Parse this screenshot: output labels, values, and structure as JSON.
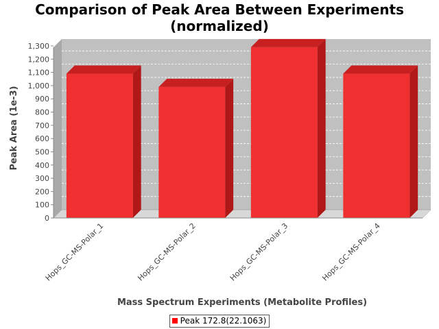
{
  "chart_data": {
    "type": "bar",
    "title_lines": [
      "Comparison of Peak Area Between Experiments",
      "(normalized)"
    ],
    "xlabel": "Mass Spectrum Experiments (Metabolite Profiles)",
    "ylabel": "Peak Area (1e-3)",
    "categories": [
      "Hops_GC-MS-Polar_1",
      "Hops_GC-MS-Polar_2",
      "Hops_GC-MS-Polar_3",
      "Hops_GC-MS-Polar_4"
    ],
    "series": [
      {
        "name": "Peak 172.8(22.1063)",
        "values": [
          1090,
          990,
          1290,
          1090
        ]
      }
    ],
    "ylim": [
      0,
      1300
    ],
    "yticks": [
      0,
      100,
      200,
      300,
      400,
      500,
      600,
      700,
      800,
      900,
      1000,
      1100,
      1200,
      1300
    ],
    "ytick_labels": [
      "0",
      "100",
      "200",
      "300",
      "400",
      "500",
      "600",
      "700",
      "800",
      "900",
      "1,000",
      "1,100",
      "1,200",
      "1,300"
    ],
    "grid": true,
    "legend_position": "bottom",
    "bar_color": "#ff0000",
    "plot_background": "#c0c0c0"
  }
}
